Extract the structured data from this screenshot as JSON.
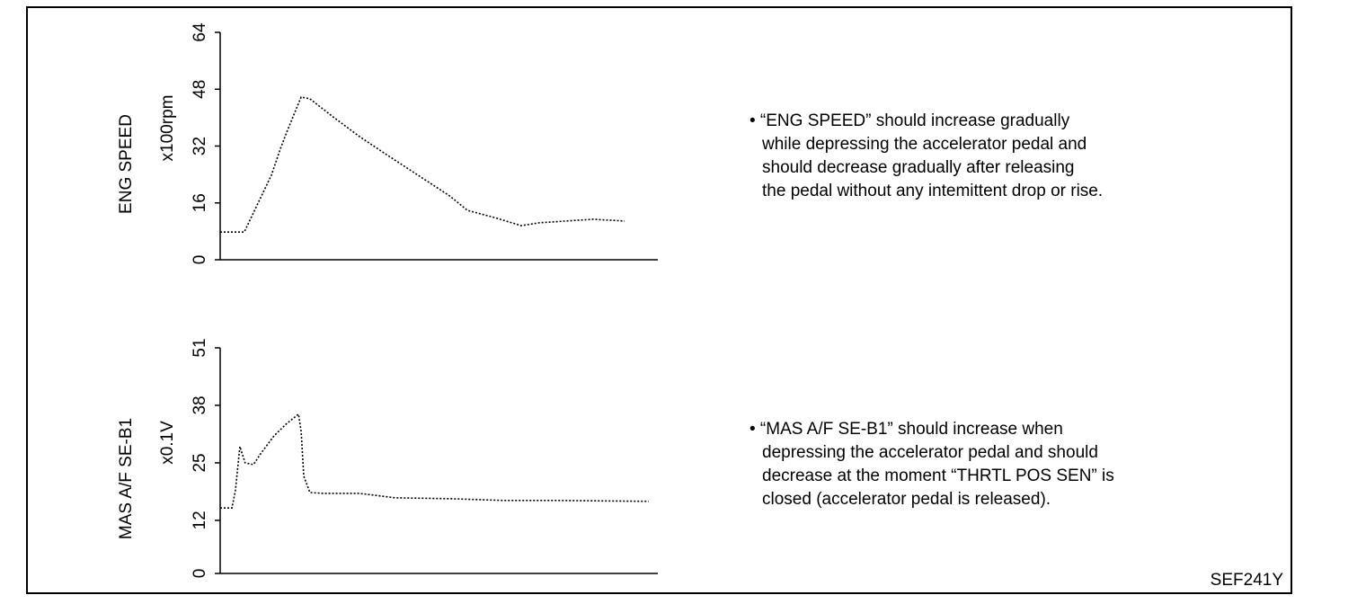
{
  "figure_id": "SEF241Y",
  "chart_data": [
    {
      "type": "line",
      "ylabel": "ENG SPEED",
      "yunit": "x100rpm",
      "ylim": [
        0,
        64
      ],
      "yticks": [
        0,
        16,
        32,
        48,
        64
      ],
      "xlim": [
        0,
        100
      ],
      "x": [
        0,
        5.5,
        11.7,
        13.8,
        15.4,
        18.5,
        20.5,
        25.7,
        31.8,
        38,
        46.2,
        52.4,
        56.5,
        62.6,
        68.8,
        72.9,
        79,
        85.2,
        92.4
      ],
      "values": [
        7.8,
        7.8,
        23.8,
        31.4,
        36.5,
        45.8,
        45.3,
        40.3,
        34.7,
        29.6,
        23,
        18,
        13.9,
        11.9,
        9.6,
        10.4,
        10.9,
        11.4,
        10.9
      ],
      "color": "#000000",
      "line_style": "dotted",
      "note": [
        "• “ENG SPEED” should increase gradually",
        "while depressing the accelerator pedal and",
        "should decrease gradually after releasing",
        "the pedal without any intemittent drop or rise."
      ]
    },
    {
      "type": "line",
      "ylabel": "MAS A/F SE-B1",
      "yunit": "x0.1V",
      "ylim": [
        0,
        51
      ],
      "yticks": [
        0,
        12,
        25,
        38,
        51
      ],
      "xlim": [
        0,
        100
      ],
      "x": [
        0,
        2.7,
        3.5,
        4.5,
        5.7,
        7.6,
        9.2,
        12.3,
        15,
        17.9,
        18.5,
        19.1,
        20.5,
        23.6,
        31.8,
        40,
        52.4,
        64.7,
        77,
        97.9
      ],
      "values": [
        14.8,
        14.8,
        18.9,
        28.7,
        25,
        24.6,
        27,
        31.1,
        33.7,
        36,
        32.1,
        22,
        18.3,
        18.1,
        18.1,
        17.1,
        16.9,
        16.5,
        16.5,
        16.3
      ],
      "color": "#000000",
      "line_style": "dotted",
      "note": [
        "• “MAS A/F SE-B1” should increase when",
        "depressing the accelerator pedal and  should",
        "decrease at the moment “THRTL POS SEN” is",
        "closed (accelerator pedal is released)."
      ]
    }
  ]
}
